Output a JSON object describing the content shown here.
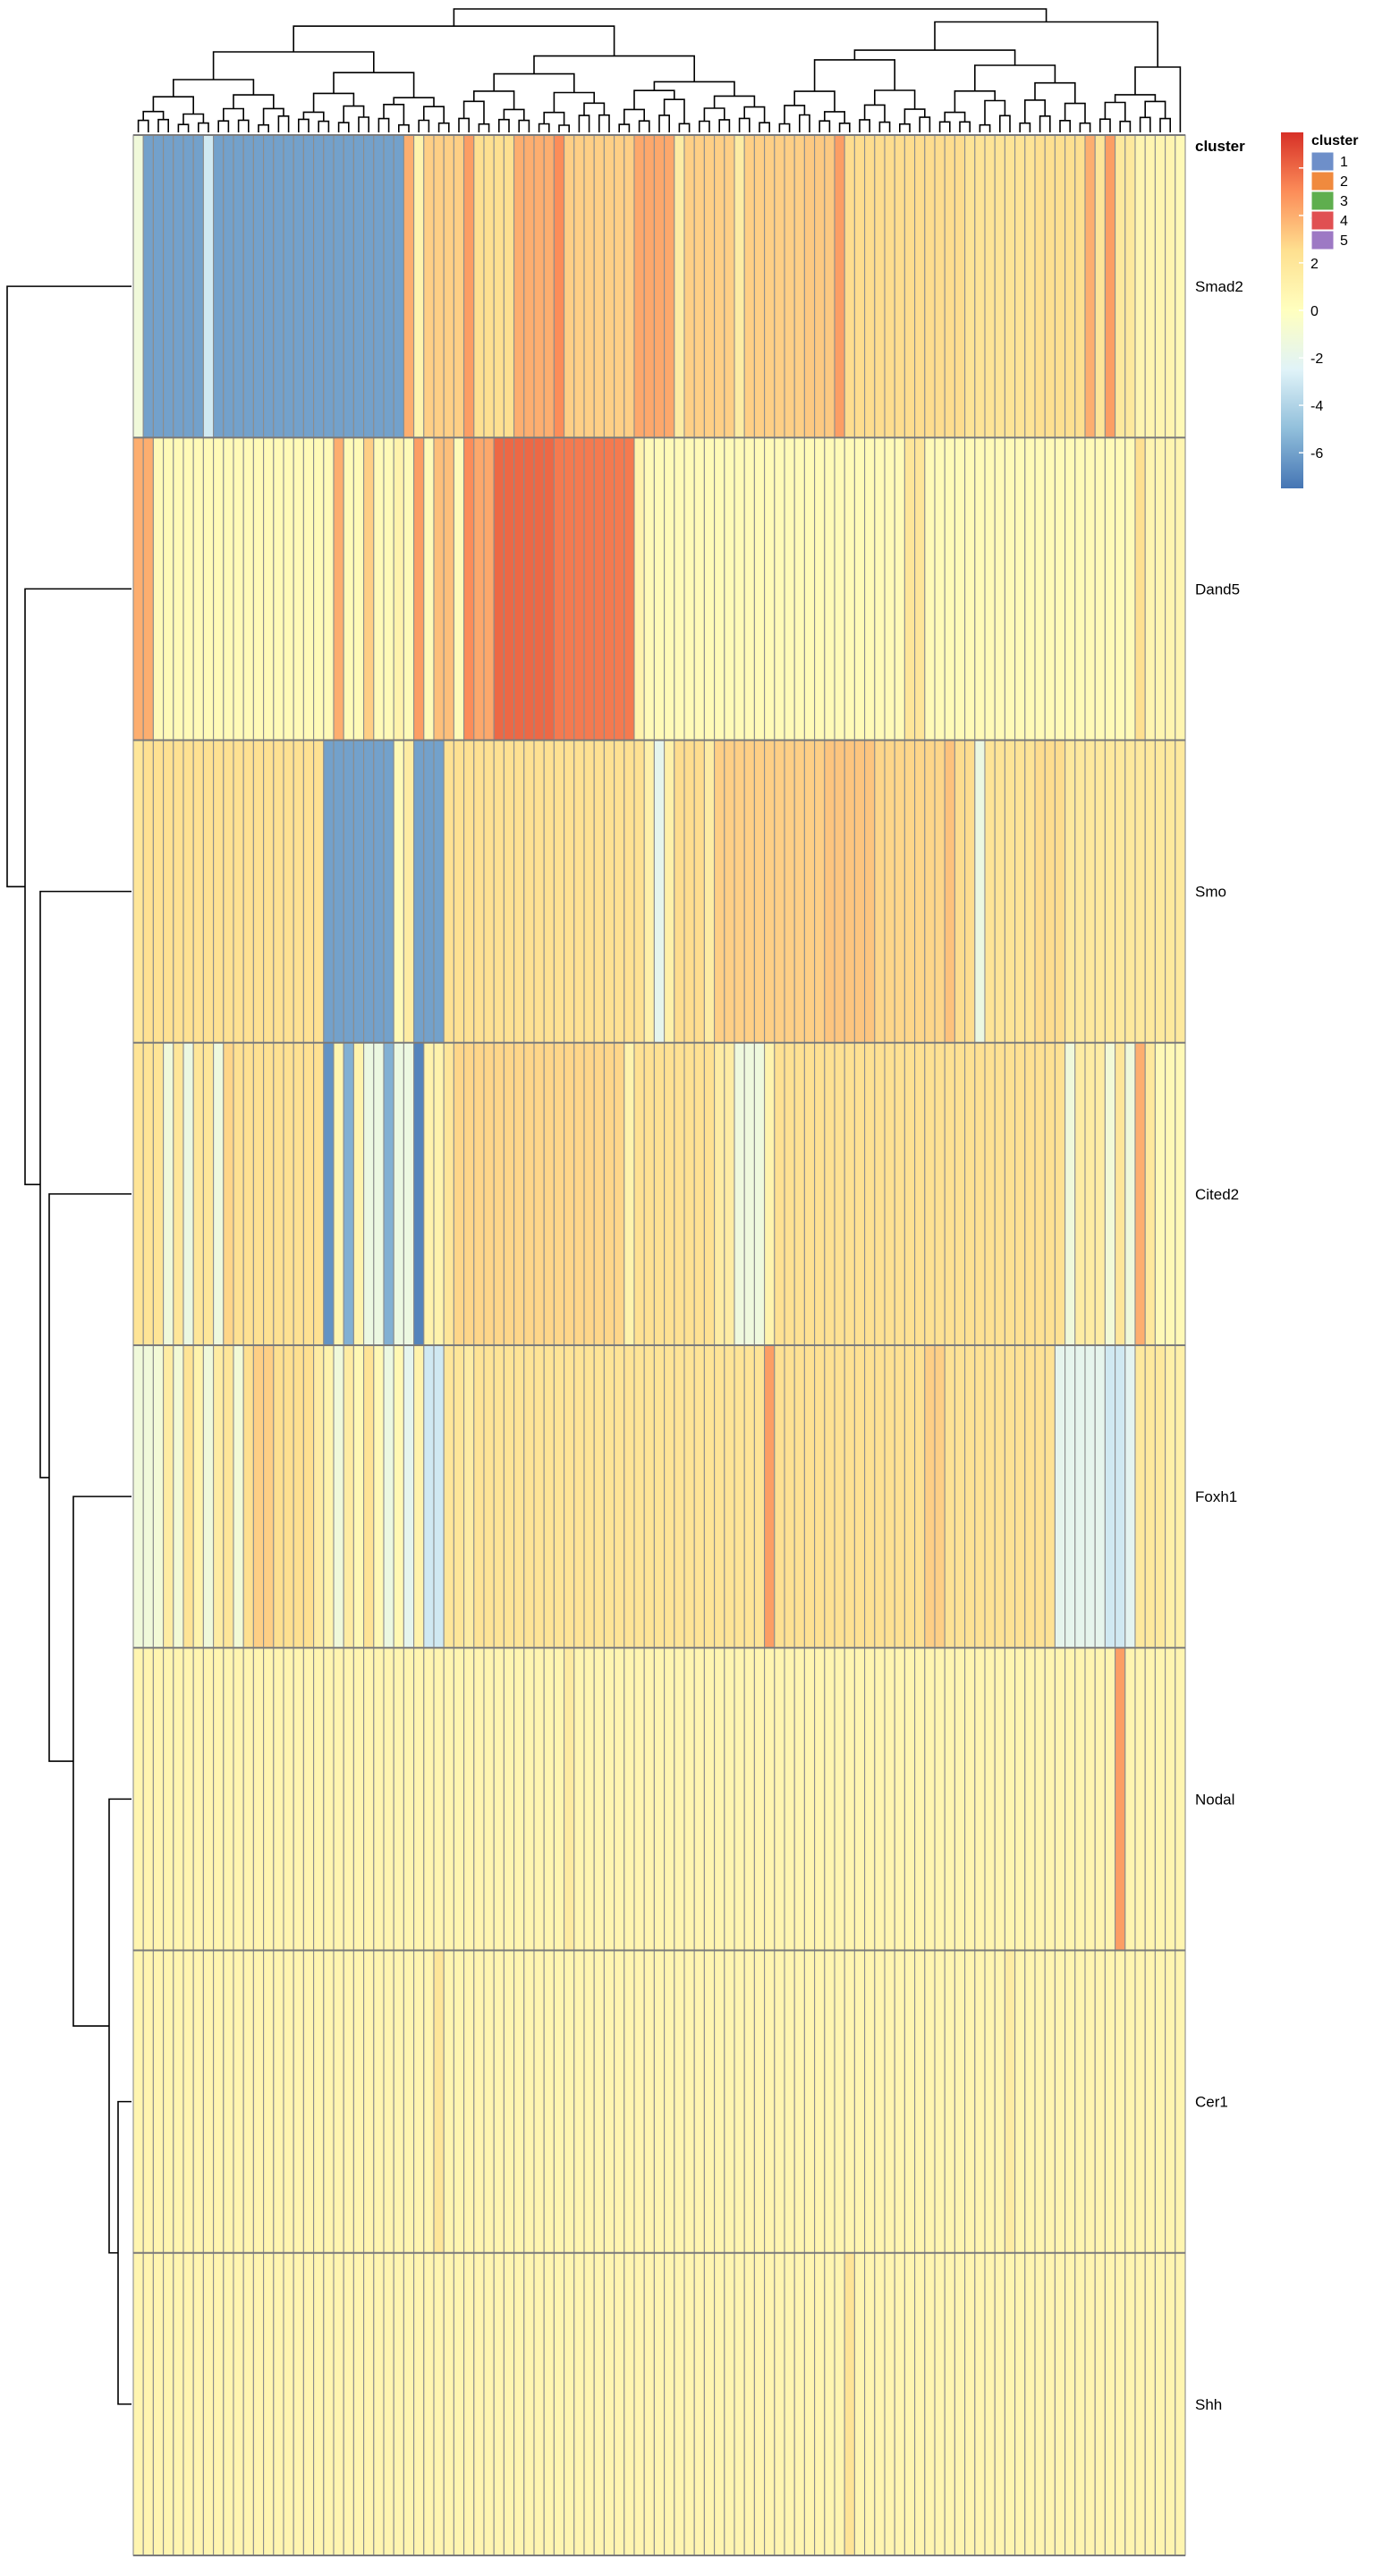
{
  "chart_data": {
    "type": "heatmap",
    "title": "",
    "xlabel": "",
    "ylabel": "",
    "rows": [
      "Smad2",
      "Dand5",
      "Smo",
      "Cited2",
      "Foxh1",
      "Nodal",
      "Cer1",
      "Shh"
    ],
    "n_columns": 105,
    "annotation": {
      "label": "cluster",
      "legend_title": "cluster",
      "categories": [
        "1",
        "2",
        "3",
        "4",
        "5"
      ],
      "colors": {
        "1": "#6e8fc9",
        "2": "#f08a3e",
        "3": "#5fae4e",
        "4": "#e05052",
        "5": "#9d79c4"
      },
      "pattern": [
        "2",
        "2",
        "4",
        "4",
        "3",
        "5",
        "2",
        "1",
        "3",
        "5",
        "4",
        "2",
        "1",
        "5",
        "4",
        "1",
        "5",
        "4",
        "2",
        "5",
        "1",
        "5",
        "3",
        "4",
        "4",
        "2",
        "3",
        "1",
        "2",
        "4",
        "2",
        "5",
        "2",
        "1",
        "4",
        "1",
        "3",
        "5",
        "2",
        "1",
        "3",
        "3",
        "2",
        "5",
        "4",
        "1",
        "5",
        "3",
        "2",
        "1"
      ]
    },
    "color_scale": {
      "min": -7.5,
      "max": 7.5,
      "ticks": [
        6,
        4,
        2,
        0,
        -2,
        -4,
        -6
      ],
      "stops": [
        "#4575b4",
        "#91bfdb",
        "#e0f3f8",
        "#ffffbf",
        "#fee090",
        "#fc8d59",
        "#d73027"
      ]
    },
    "row_profiles": [
      {
        "name": "Smad2",
        "base": 3.0,
        "segments": [
          {
            "from": 0,
            "to": 0,
            "value": -1.2
          },
          {
            "from": 1,
            "to": 6,
            "value": -6.0
          },
          {
            "from": 7,
            "to": 7,
            "value": -3.0
          },
          {
            "from": 8,
            "to": 26,
            "value": -6.0
          },
          {
            "from": 27,
            "to": 27,
            "value": 4.0
          },
          {
            "from": 28,
            "to": 28,
            "value": 1.0
          },
          {
            "from": 29,
            "to": 32,
            "value": 3.0
          },
          {
            "from": 33,
            "to": 33,
            "value": 4.5
          },
          {
            "from": 34,
            "to": 37,
            "value": 2.5
          },
          {
            "from": 38,
            "to": 41,
            "value": 4.0
          },
          {
            "from": 42,
            "to": 42,
            "value": 5.0
          },
          {
            "from": 43,
            "to": 49,
            "value": 3.0
          },
          {
            "from": 50,
            "to": 53,
            "value": 4.2
          },
          {
            "from": 54,
            "to": 54,
            "value": 1.5
          },
          {
            "from": 55,
            "to": 59,
            "value": 3.0
          },
          {
            "from": 60,
            "to": 60,
            "value": 1.5
          },
          {
            "from": 61,
            "to": 66,
            "value": 3.0
          },
          {
            "from": 67,
            "to": 69,
            "value": 3.2
          },
          {
            "from": 70,
            "to": 70,
            "value": 4.5
          },
          {
            "from": 71,
            "to": 82,
            "value": 2.6
          },
          {
            "from": 83,
            "to": 89,
            "value": 2.2
          },
          {
            "from": 90,
            "to": 94,
            "value": 2.5
          },
          {
            "from": 95,
            "to": 95,
            "value": 4.0
          },
          {
            "from": 96,
            "to": 96,
            "value": 2.0
          },
          {
            "from": 97,
            "to": 97,
            "value": 4.5
          },
          {
            "from": 98,
            "to": 99,
            "value": 1.8
          },
          {
            "from": 100,
            "to": 103,
            "value": 0.8
          },
          {
            "from": 104,
            "to": 104,
            "value": 0.5
          }
        ]
      },
      {
        "name": "Dand5",
        "base": 0.4,
        "segments": [
          {
            "from": 0,
            "to": 1,
            "value": 4.0
          },
          {
            "from": 20,
            "to": 20,
            "value": 4.0
          },
          {
            "from": 23,
            "to": 23,
            "value": 3.0
          },
          {
            "from": 26,
            "to": 26,
            "value": 1.0
          },
          {
            "from": 28,
            "to": 28,
            "value": 4.5
          },
          {
            "from": 30,
            "to": 31,
            "value": 3.5
          },
          {
            "from": 33,
            "to": 33,
            "value": 5.0
          },
          {
            "from": 34,
            "to": 35,
            "value": 4.2
          },
          {
            "from": 36,
            "to": 41,
            "value": 6.0
          },
          {
            "from": 42,
            "to": 49,
            "value": 5.5
          },
          {
            "from": 50,
            "to": 50,
            "value": 1.0
          },
          {
            "from": 77,
            "to": 78,
            "value": 2.0
          },
          {
            "from": 100,
            "to": 100,
            "value": 2.5
          },
          {
            "from": 101,
            "to": 104,
            "value": 0.8
          }
        ]
      },
      {
        "name": "Smo",
        "base": 2.4,
        "segments": [
          {
            "from": 0,
            "to": 0,
            "value": 2.0
          },
          {
            "from": 1,
            "to": 18,
            "value": 2.4
          },
          {
            "from": 19,
            "to": 25,
            "value": -6.0
          },
          {
            "from": 26,
            "to": 26,
            "value": 0.5
          },
          {
            "from": 27,
            "to": 27,
            "value": 1.5
          },
          {
            "from": 28,
            "to": 30,
            "value": -6.0
          },
          {
            "from": 51,
            "to": 51,
            "value": 1.2
          },
          {
            "from": 52,
            "to": 52,
            "value": -2.0
          },
          {
            "from": 53,
            "to": 53,
            "value": 1.2
          },
          {
            "from": 54,
            "to": 56,
            "value": 2.6
          },
          {
            "from": 57,
            "to": 57,
            "value": 1.5
          },
          {
            "from": 58,
            "to": 68,
            "value": 3.0
          },
          {
            "from": 69,
            "to": 73,
            "value": 3.3
          },
          {
            "from": 74,
            "to": 80,
            "value": 2.8
          },
          {
            "from": 81,
            "to": 81,
            "value": 3.4
          },
          {
            "from": 82,
            "to": 83,
            "value": 2.6
          },
          {
            "from": 84,
            "to": 84,
            "value": -1.5
          },
          {
            "from": 85,
            "to": 89,
            "value": 2.2
          },
          {
            "from": 90,
            "to": 92,
            "value": 2.6
          },
          {
            "from": 93,
            "to": 104,
            "value": 1.8
          }
        ]
      },
      {
        "name": "Cited2",
        "base": 2.2,
        "segments": [
          {
            "from": 0,
            "to": 2,
            "value": 2.2
          },
          {
            "from": 3,
            "to": 3,
            "value": -1.2
          },
          {
            "from": 4,
            "to": 4,
            "value": 2.0
          },
          {
            "from": 5,
            "to": 5,
            "value": -1.5
          },
          {
            "from": 6,
            "to": 7,
            "value": 2.0
          },
          {
            "from": 8,
            "to": 8,
            "value": -1.3
          },
          {
            "from": 9,
            "to": 9,
            "value": 2.8
          },
          {
            "from": 10,
            "to": 18,
            "value": 2.4
          },
          {
            "from": 19,
            "to": 19,
            "value": -6.5
          },
          {
            "from": 20,
            "to": 20,
            "value": 0.8
          },
          {
            "from": 21,
            "to": 21,
            "value": -5.5
          },
          {
            "from": 22,
            "to": 22,
            "value": 1.0
          },
          {
            "from": 23,
            "to": 24,
            "value": -1.5
          },
          {
            "from": 25,
            "to": 25,
            "value": -5.5
          },
          {
            "from": 26,
            "to": 27,
            "value": -1.5
          },
          {
            "from": 28,
            "to": 28,
            "value": -7.0
          },
          {
            "from": 29,
            "to": 30,
            "value": 1.0
          },
          {
            "from": 31,
            "to": 31,
            "value": 2.0
          },
          {
            "from": 32,
            "to": 48,
            "value": 2.8
          },
          {
            "from": 49,
            "to": 49,
            "value": 1.0
          },
          {
            "from": 50,
            "to": 57,
            "value": 2.4
          },
          {
            "from": 58,
            "to": 59,
            "value": 1.5
          },
          {
            "from": 60,
            "to": 62,
            "value": -1.3
          },
          {
            "from": 63,
            "to": 63,
            "value": 1.0
          },
          {
            "from": 64,
            "to": 92,
            "value": 2.4
          },
          {
            "from": 93,
            "to": 93,
            "value": -1.2
          },
          {
            "from": 94,
            "to": 96,
            "value": 1.5
          },
          {
            "from": 97,
            "to": 97,
            "value": -1.0
          },
          {
            "from": 98,
            "to": 98,
            "value": 2.0
          },
          {
            "from": 99,
            "to": 99,
            "value": -1.2
          },
          {
            "from": 100,
            "to": 100,
            "value": 4.0
          },
          {
            "from": 101,
            "to": 101,
            "value": 1.8
          },
          {
            "from": 102,
            "to": 104,
            "value": 0.5
          }
        ]
      },
      {
        "name": "Foxh1",
        "base": 1.8,
        "segments": [
          {
            "from": 0,
            "to": 1,
            "value": -1.2
          },
          {
            "from": 2,
            "to": 2,
            "value": -1.0
          },
          {
            "from": 3,
            "to": 3,
            "value": 1.5
          },
          {
            "from": 4,
            "to": 4,
            "value": -1.0
          },
          {
            "from": 5,
            "to": 5,
            "value": 2.2
          },
          {
            "from": 6,
            "to": 6,
            "value": 1.0
          },
          {
            "from": 7,
            "to": 7,
            "value": -1.2
          },
          {
            "from": 8,
            "to": 8,
            "value": 1.5
          },
          {
            "from": 9,
            "to": 9,
            "value": 2.0
          },
          {
            "from": 10,
            "to": 10,
            "value": -1.0
          },
          {
            "from": 11,
            "to": 11,
            "value": 2.5
          },
          {
            "from": 12,
            "to": 13,
            "value": 3.0
          },
          {
            "from": 14,
            "to": 17,
            "value": 2.5
          },
          {
            "from": 18,
            "to": 18,
            "value": 1.5
          },
          {
            "from": 19,
            "to": 19,
            "value": 1.0
          },
          {
            "from": 20,
            "to": 20,
            "value": -1.2
          },
          {
            "from": 21,
            "to": 21,
            "value": 1.5
          },
          {
            "from": 22,
            "to": 22,
            "value": 0.6
          },
          {
            "from": 23,
            "to": 23,
            "value": 2.2
          },
          {
            "from": 24,
            "to": 24,
            "value": 0.6
          },
          {
            "from": 25,
            "to": 25,
            "value": -1.5
          },
          {
            "from": 26,
            "to": 26,
            "value": 0.6
          },
          {
            "from": 27,
            "to": 27,
            "value": -2.0
          },
          {
            "from": 28,
            "to": 28,
            "value": 1.0
          },
          {
            "from": 29,
            "to": 30,
            "value": -3.0
          },
          {
            "from": 31,
            "to": 32,
            "value": 2.0
          },
          {
            "from": 33,
            "to": 33,
            "value": 1.5
          },
          {
            "from": 34,
            "to": 62,
            "value": 2.2
          },
          {
            "from": 63,
            "to": 63,
            "value": 4.5
          },
          {
            "from": 64,
            "to": 78,
            "value": 2.4
          },
          {
            "from": 79,
            "to": 80,
            "value": 3.0
          },
          {
            "from": 81,
            "to": 91,
            "value": 2.3
          },
          {
            "from": 92,
            "to": 96,
            "value": -2.0
          },
          {
            "from": 97,
            "to": 98,
            "value": -3.0
          },
          {
            "from": 99,
            "to": 99,
            "value": -2.2
          },
          {
            "from": 100,
            "to": 102,
            "value": 1.8
          },
          {
            "from": 103,
            "to": 104,
            "value": 1.2
          }
        ]
      },
      {
        "name": "Nodal",
        "base": 0.8,
        "segments": [
          {
            "from": 43,
            "to": 43,
            "value": 1.6
          },
          {
            "from": 98,
            "to": 98,
            "value": 4.5
          }
        ]
      },
      {
        "name": "Cer1",
        "base": 0.8,
        "segments": [
          {
            "from": 30,
            "to": 30,
            "value": 2.0
          },
          {
            "from": 87,
            "to": 87,
            "value": 1.5
          }
        ]
      },
      {
        "name": "Shh",
        "base": 0.8,
        "segments": [
          {
            "from": 71,
            "to": 71,
            "value": 2.2
          }
        ]
      }
    ]
  }
}
